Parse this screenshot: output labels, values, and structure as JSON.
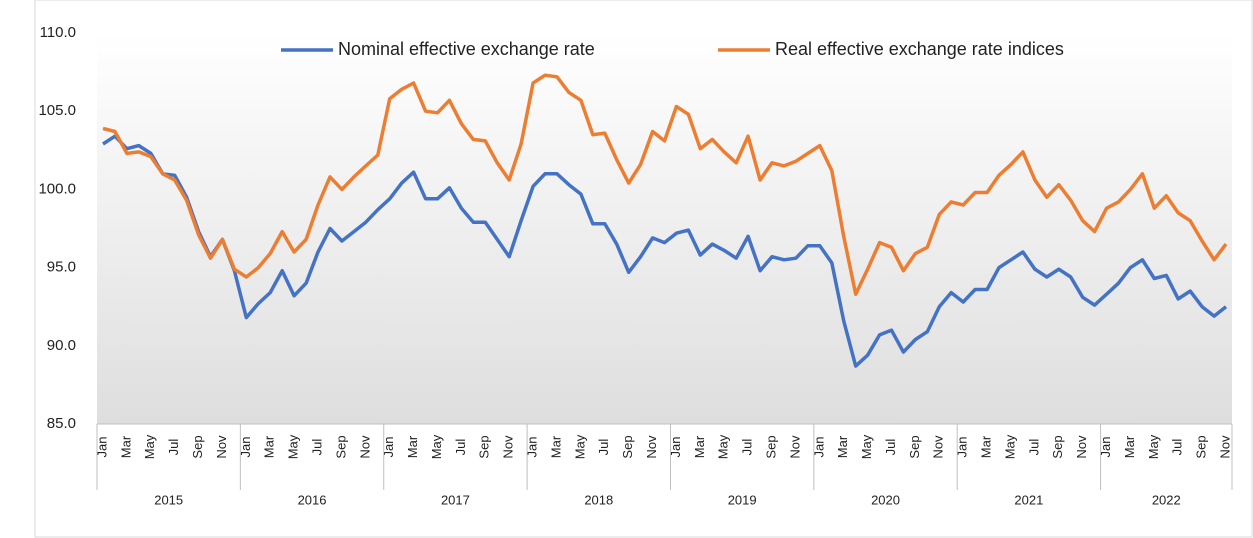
{
  "chart_data": {
    "type": "line",
    "categories": [
      "Jan",
      null,
      "Mar",
      null,
      "May",
      null,
      "Jul",
      null,
      "Sep",
      null,
      "Nov",
      null,
      "Jan",
      null,
      "Mar",
      null,
      "May",
      null,
      "Jul",
      null,
      "Sep",
      null,
      "Nov",
      null,
      "Jan",
      null,
      "Mar",
      null,
      "May",
      null,
      "Jul",
      null,
      "Sep",
      null,
      "Nov",
      null,
      "Jan",
      null,
      "Mar",
      null,
      "May",
      null,
      "Jul",
      null,
      "Sep",
      null,
      "Nov",
      null,
      "Jan",
      null,
      "Mar",
      null,
      "May",
      null,
      "Jul",
      null,
      "Sep",
      null,
      "Nov",
      null,
      "Jan",
      null,
      "Mar",
      null,
      "May",
      null,
      "Jul",
      null,
      "Sep",
      null,
      "Nov",
      null,
      "Jan",
      null,
      "Mar",
      null,
      "May",
      null,
      "Jul",
      null,
      "Sep",
      null,
      "Nov",
      null,
      "Jan",
      null,
      "Mar",
      null,
      "May",
      null,
      "Jul",
      null,
      "Sep",
      null,
      "Nov"
    ],
    "years": [
      "2015",
      "2016",
      "2017",
      "2018",
      "2019",
      "2020",
      "2021",
      "2022"
    ],
    "series": [
      {
        "name": "Nominal effective exchange rate",
        "color": "#4472c4",
        "values": [
          102.9,
          103.4,
          102.6,
          102.8,
          102.3,
          101.0,
          100.9,
          99.5,
          97.3,
          95.7,
          96.8,
          94.8,
          91.8,
          92.7,
          93.4,
          94.8,
          93.2,
          94.0,
          96.0,
          97.5,
          96.7,
          97.3,
          97.9,
          98.7,
          99.4,
          100.4,
          101.1,
          99.4,
          99.4,
          100.1,
          98.8,
          97.9,
          97.9,
          96.8,
          95.7,
          98.0,
          100.2,
          101.0,
          101.0,
          100.3,
          99.7,
          97.8,
          97.8,
          96.5,
          94.7,
          95.7,
          96.9,
          96.6,
          97.2,
          97.4,
          95.8,
          96.5,
          96.1,
          95.6,
          97.0,
          94.8,
          95.7,
          95.5,
          95.6,
          96.4,
          96.4,
          95.3,
          91.6,
          88.7,
          89.4,
          90.7,
          91.0,
          89.6,
          90.4,
          90.9,
          92.5,
          93.4,
          92.8,
          93.6,
          93.6,
          95.0,
          95.5,
          96.0,
          94.9,
          94.4,
          94.9,
          94.4,
          93.1,
          92.6,
          93.3,
          94.0,
          95.0,
          95.5,
          94.3,
          94.5,
          93.0,
          93.5,
          92.5,
          91.9,
          92.5
        ]
      },
      {
        "name": "Real effective exchange rate indices",
        "color": "#ed7d31",
        "values": [
          103.9,
          103.7,
          102.3,
          102.4,
          102.1,
          101.0,
          100.6,
          99.3,
          97.1,
          95.6,
          96.8,
          94.9,
          94.4,
          95.0,
          95.9,
          97.3,
          96.0,
          96.8,
          99.0,
          100.8,
          100.0,
          100.8,
          101.5,
          102.2,
          105.8,
          106.4,
          106.8,
          105.0,
          104.9,
          105.7,
          104.2,
          103.2,
          103.1,
          101.7,
          100.6,
          102.9,
          106.8,
          107.3,
          107.2,
          106.2,
          105.7,
          103.5,
          103.6,
          101.9,
          100.4,
          101.6,
          103.7,
          103.1,
          105.3,
          104.8,
          102.6,
          103.2,
          102.4,
          101.7,
          103.4,
          100.6,
          101.7,
          101.5,
          101.8,
          102.3,
          102.8,
          101.2,
          97.0,
          93.3,
          94.9,
          96.6,
          96.3,
          94.8,
          95.9,
          96.3,
          98.4,
          99.2,
          99.0,
          99.8,
          99.8,
          100.9,
          101.6,
          102.4,
          100.6,
          99.5,
          100.3,
          99.3,
          98.0,
          97.3,
          98.8,
          99.2,
          100.0,
          101.0,
          98.8,
          99.6,
          98.5,
          98.0,
          96.7,
          95.5,
          96.5
        ]
      }
    ],
    "ylim": [
      85,
      110
    ],
    "yticks": [
      {
        "value": 85,
        "label": "85.0"
      },
      {
        "value": 90,
        "label": "90.0"
      },
      {
        "value": 95,
        "label": "95.0"
      },
      {
        "value": 100,
        "label": "100.0"
      },
      {
        "value": 105,
        "label": "105.0"
      },
      {
        "value": 110,
        "label": "110.0"
      }
    ],
    "legend": "top"
  }
}
